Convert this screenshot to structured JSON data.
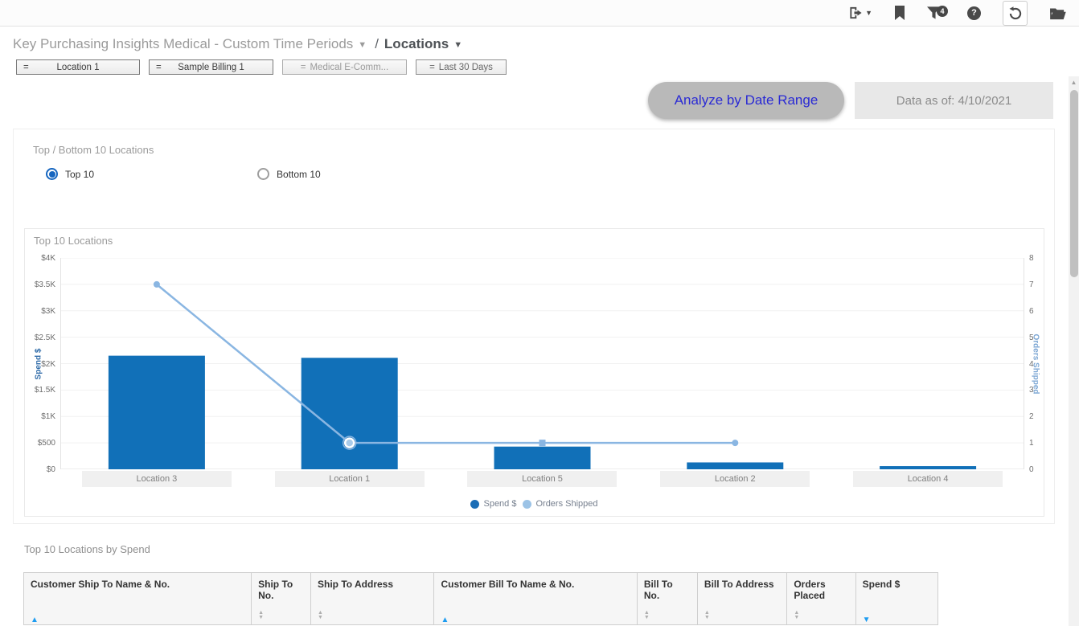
{
  "colors": {
    "bar": "#1170b8",
    "line": "#8ab6e2",
    "legend_bar_dot": "#1a6db6",
    "legend_line_dot": "#9cc3e6",
    "accent_button_text": "#2a2ad4",
    "sort_active": "#1e9cf0"
  },
  "toolbar": {
    "filter_badge": "4",
    "icons": [
      {
        "name": "export-icon",
        "shape": "door-with-right-arrow + caret"
      },
      {
        "name": "bookmark-icon",
        "shape": "filled bookmark"
      },
      {
        "name": "filter-icon",
        "shape": "funnel with count badge"
      },
      {
        "name": "help-icon",
        "shape": "question mark circle"
      },
      {
        "name": "refresh-icon",
        "shape": "counterclockwise circular arrow, boxed"
      },
      {
        "name": "folder-icon",
        "shape": "open folder"
      }
    ]
  },
  "breadcrumb": {
    "report": "Key Purchasing Insights Medical - Custom Time Periods",
    "separator": "/",
    "page": "Locations"
  },
  "chips": [
    {
      "operator": "=",
      "label": "Location 1"
    },
    {
      "operator": "=",
      "label": "Sample Billing 1"
    },
    {
      "operator": "=",
      "label": "Medical E-Comm..."
    },
    {
      "operator": "=",
      "label": "Last 30 Days"
    }
  ],
  "actions": {
    "analyze": "Analyze by Date Range",
    "data_as_of": "Data as of: 4/10/2021"
  },
  "top_bottom_panel": {
    "title": "Top / Bottom 10 Locations",
    "options": [
      {
        "label": "Top 10",
        "selected": true
      },
      {
        "label": "Bottom 10",
        "selected": false
      }
    ]
  },
  "chart_data": {
    "type": "bar",
    "subtype": "combo bar+line, dual axis",
    "title": "Top 10 Locations",
    "categories": [
      "Location 3",
      "Location 1",
      "Location 5",
      "Location 2",
      "Location 4"
    ],
    "series": [
      {
        "name": "Spend $",
        "type": "bar",
        "axis": "left",
        "values": [
          2150,
          2110,
          430,
          130,
          60
        ]
      },
      {
        "name": "Orders Shipped",
        "type": "line",
        "axis": "right",
        "values": [
          7,
          1,
          1,
          1,
          null
        ]
      }
    ],
    "axes": {
      "left": {
        "label": "Spend $",
        "min": 0,
        "max": 4000,
        "ticks": [
          "$4K",
          "$3.5K",
          "$3K",
          "$2.5K",
          "$2K",
          "$1.5K",
          "$1K",
          "$500",
          "$0"
        ]
      },
      "right": {
        "label": "Orders Shipped",
        "min": 0,
        "max": 8,
        "ticks": [
          "8",
          "7",
          "6",
          "5",
          "4",
          "3",
          "2",
          "1",
          "0"
        ]
      }
    },
    "grid": true,
    "legend": {
      "position": "bottom",
      "entries": [
        "Spend $",
        "Orders Shipped"
      ]
    }
  },
  "table": {
    "title": "Top 10 Locations by Spend",
    "columns": [
      {
        "label": "Customer Ship To Name & No.",
        "sort": "asc"
      },
      {
        "label": "Ship To No.",
        "sort": "none"
      },
      {
        "label": "Ship To Address",
        "sort": "none"
      },
      {
        "label": "Customer Bill To Name & No.",
        "sort": "asc"
      },
      {
        "label": "Bill To No.",
        "sort": "none"
      },
      {
        "label": "Bill To Address",
        "sort": "none"
      },
      {
        "label": "Orders Placed",
        "sort": "none"
      },
      {
        "label": "Spend $",
        "sort": "desc"
      }
    ]
  }
}
